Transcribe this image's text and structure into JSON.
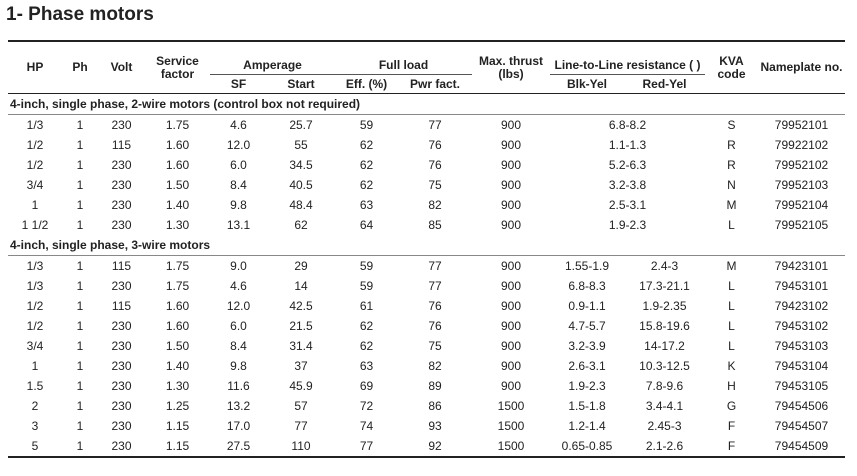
{
  "title": "1- Phase motors",
  "table": {
    "header": {
      "top": [
        "HP",
        "Ph",
        "Volt",
        "Service factor",
        "Amperage",
        "Full load",
        "Max. thrust (lbs)",
        "Line-to-Line resistance (  )",
        "KVA code",
        "Nameplate no."
      ],
      "sub": [
        "SF",
        "Start",
        "Eff. (%)",
        "Pwr fact.",
        "Blk-Yel",
        "Red-Yel"
      ]
    },
    "sections": [
      {
        "title": "4-inch, single phase, 2-wire motors (control box not required)",
        "rows": [
          [
            "1/3",
            "1",
            "230",
            "1.75",
            "4.6",
            "25.7",
            "59",
            "77",
            "900",
            "6.8-8.2",
            "S",
            "79952101"
          ],
          [
            "1/2",
            "1",
            "115",
            "1.60",
            "12.0",
            "55",
            "62",
            "76",
            "900",
            "1.1-1.3",
            "R",
            "79922102"
          ],
          [
            "1/2",
            "1",
            "230",
            "1.60",
            "6.0",
            "34.5",
            "62",
            "76",
            "900",
            "5.2-6.3",
            "R",
            "79952102"
          ],
          [
            "3/4",
            "1",
            "230",
            "1.50",
            "8.4",
            "40.5",
            "62",
            "75",
            "900",
            "3.2-3.8",
            "N",
            "79952103"
          ],
          [
            "1",
            "1",
            "230",
            "1.40",
            "9.8",
            "48.4",
            "63",
            "82",
            "900",
            "2.5-3.1",
            "M",
            "79952104"
          ],
          [
            "1 1/2",
            "1",
            "230",
            "1.30",
            "13.1",
            "62",
            "64",
            "85",
            "900",
            "1.9-2.3",
            "L",
            "79952105"
          ]
        ]
      },
      {
        "title": "4-inch, single phase, 3-wire motors",
        "rows": [
          [
            "1/3",
            "1",
            "115",
            "1.75",
            "9.0",
            "29",
            "59",
            "77",
            "900",
            "1.55-1.9",
            "2.4-3",
            "M",
            "79423101"
          ],
          [
            "1/3",
            "1",
            "230",
            "1.75",
            "4.6",
            "14",
            "59",
            "77",
            "900",
            "6.8-8.3",
            "17.3-21.1",
            "L",
            "79453101"
          ],
          [
            "1/2",
            "1",
            "115",
            "1.60",
            "12.0",
            "42.5",
            "61",
            "76",
            "900",
            "0.9-1.1",
            "1.9-2.35",
            "L",
            "79423102"
          ],
          [
            "1/2",
            "1",
            "230",
            "1.60",
            "6.0",
            "21.5",
            "62",
            "76",
            "900",
            "4.7-5.7",
            "15.8-19.6",
            "L",
            "79453102"
          ],
          [
            "3/4",
            "1",
            "230",
            "1.50",
            "8.4",
            "31.4",
            "62",
            "75",
            "900",
            "3.2-3.9",
            "14-17.2",
            "L",
            "79453103"
          ],
          [
            "1",
            "1",
            "230",
            "1.40",
            "9.8",
            "37",
            "63",
            "82",
            "900",
            "2.6-3.1",
            "10.3-12.5",
            "K",
            "79453104"
          ],
          [
            "1.5",
            "1",
            "230",
            "1.30",
            "11.6",
            "45.9",
            "69",
            "89",
            "900",
            "1.9-2.3",
            "7.8-9.6",
            "H",
            "79453105"
          ],
          [
            "2",
            "1",
            "230",
            "1.25",
            "13.2",
            "57",
            "72",
            "86",
            "1500",
            "1.5-1.8",
            "3.4-4.1",
            "G",
            "79454506"
          ],
          [
            "3",
            "1",
            "230",
            "1.15",
            "17.0",
            "77",
            "74",
            "93",
            "1500",
            "1.2-1.4",
            "2.45-3",
            "F",
            "79454507"
          ],
          [
            "5",
            "1",
            "230",
            "1.15",
            "27.5",
            "110",
            "77",
            "92",
            "1500",
            "0.65-0.85",
            "2.1-2.6",
            "F",
            "79454509"
          ]
        ]
      }
    ]
  }
}
